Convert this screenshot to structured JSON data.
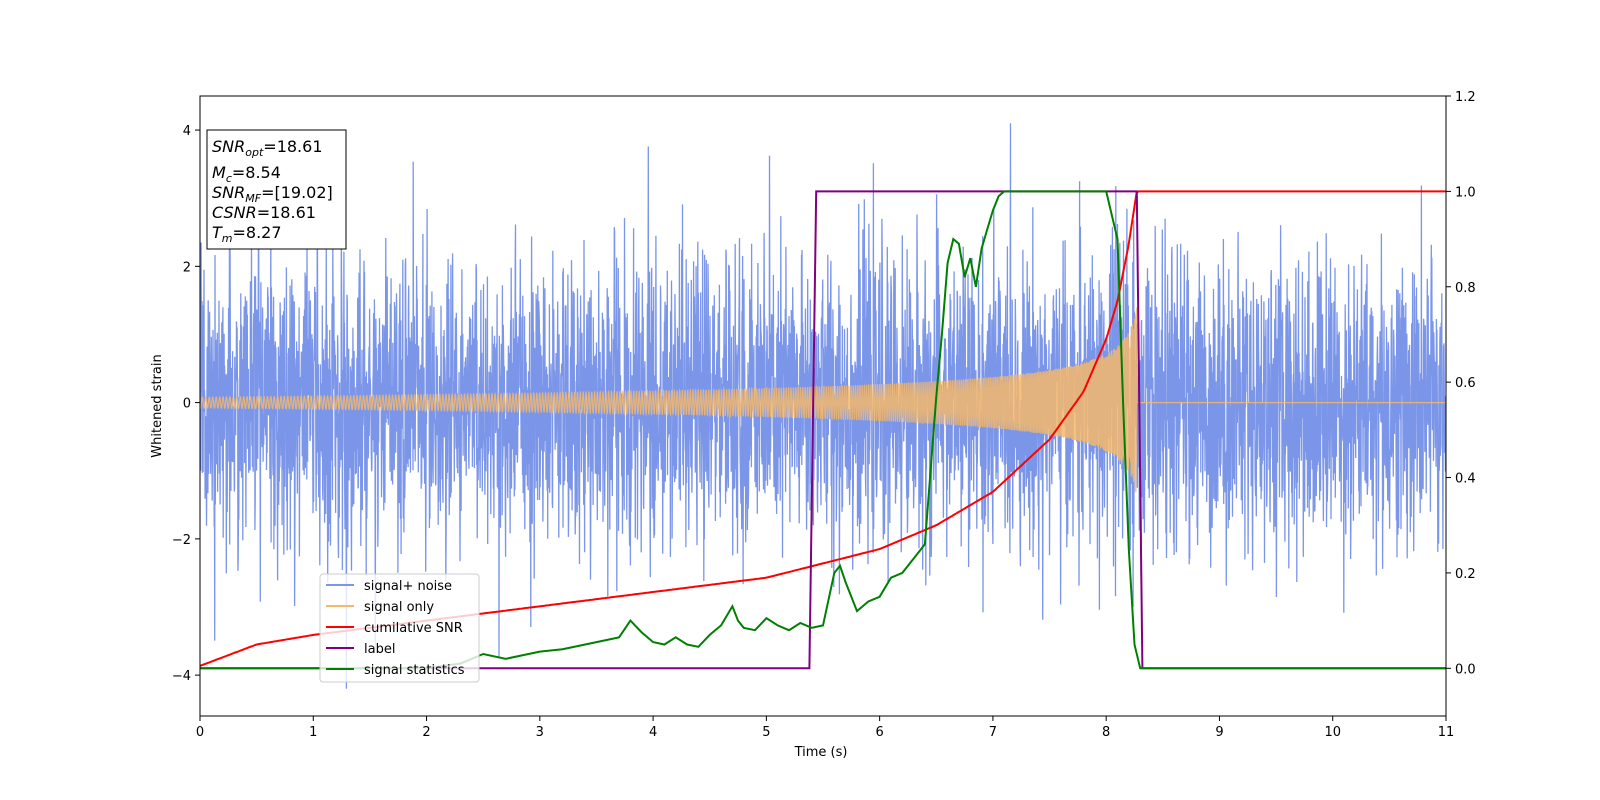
{
  "chart_data": {
    "type": "line",
    "xlabel": "Time (s)",
    "ylabel": "Whitened strain",
    "xlim": [
      0,
      11
    ],
    "ylim": [
      -4.6,
      4.5
    ],
    "y2lim": [
      -0.1,
      1.2
    ],
    "x_ticks": [
      "0",
      "1",
      "2",
      "3",
      "4",
      "5",
      "6",
      "7",
      "8",
      "9",
      "10",
      "11"
    ],
    "y_ticks": [
      "−4",
      "−2",
      "0",
      "2",
      "4"
    ],
    "y2_ticks": [
      "0.0",
      "0.2",
      "0.4",
      "0.6",
      "0.8",
      "1.0",
      "1.2"
    ],
    "grid": false,
    "legend_position": "lower-left",
    "colors": {
      "noise": "#7b96e8",
      "signal": "#f5b86b",
      "cumulative_snr": "#ff0000",
      "label": "#800080",
      "statistics": "#008000"
    },
    "info_box": {
      "snr_opt": "=18.61",
      "mc": "=8.54",
      "snr_mf": "=[19.02]",
      "csnr": "=18.61",
      "tm": "=8.27"
    },
    "series": [
      {
        "name": "signal+ noise",
        "axis": "left",
        "description": "whitened noise plus signal, approx. Gaussian with peaks up to about ±4"
      },
      {
        "name": "signal only",
        "axis": "left",
        "chirp_start": 0,
        "chirp_end": 8.27,
        "amplitude_start": 0.08,
        "amplitude_end": 1.4
      },
      {
        "name": "cumilative SNR",
        "axis": "right",
        "x": [
          0,
          0.5,
          1,
          2,
          3,
          4,
          5,
          5.5,
          6,
          6.5,
          7,
          7.5,
          7.8,
          8.0,
          8.1,
          8.2,
          8.27,
          11
        ],
        "y": [
          0.005,
          0.05,
          0.07,
          0.1,
          0.13,
          0.16,
          0.19,
          0.22,
          0.25,
          0.3,
          0.37,
          0.48,
          0.58,
          0.69,
          0.77,
          0.89,
          1.0,
          1.0
        ]
      },
      {
        "name": "label",
        "axis": "right",
        "x": [
          0,
          5.38,
          5.44,
          8.27,
          8.27,
          8.32,
          11
        ],
        "y": [
          0,
          0,
          1,
          1,
          1,
          0,
          0
        ]
      },
      {
        "name": "signal statistics",
        "axis": "right",
        "x": [
          0,
          0.5,
          1,
          1.5,
          2,
          2.3,
          2.5,
          2.7,
          3.0,
          3.2,
          3.5,
          3.7,
          3.8,
          3.9,
          4.0,
          4.1,
          4.2,
          4.3,
          4.4,
          4.5,
          4.6,
          4.7,
          4.75,
          4.8,
          4.9,
          5.0,
          5.1,
          5.2,
          5.3,
          5.4,
          5.5,
          5.6,
          5.65,
          5.7,
          5.8,
          5.9,
          6.0,
          6.1,
          6.2,
          6.3,
          6.4,
          6.5,
          6.55,
          6.6,
          6.65,
          6.7,
          6.75,
          6.8,
          6.85,
          6.9,
          6.95,
          7.0,
          7.05,
          7.1,
          7.2,
          7.3,
          7.4,
          7.6,
          7.8,
          8.0,
          8.1,
          8.15,
          8.2,
          8.25,
          8.3,
          9.0,
          11
        ],
        "y": [
          0.0,
          0.0,
          0.0,
          0.0,
          0.0,
          0.01,
          0.03,
          0.02,
          0.035,
          0.04,
          0.055,
          0.065,
          0.1,
          0.075,
          0.055,
          0.05,
          0.065,
          0.05,
          0.045,
          0.07,
          0.09,
          0.13,
          0.1,
          0.085,
          0.08,
          0.105,
          0.09,
          0.08,
          0.095,
          0.085,
          0.09,
          0.2,
          0.215,
          0.18,
          0.12,
          0.14,
          0.15,
          0.19,
          0.2,
          0.23,
          0.26,
          0.57,
          0.7,
          0.85,
          0.9,
          0.89,
          0.82,
          0.86,
          0.8,
          0.88,
          0.92,
          0.96,
          0.99,
          1.0,
          1.0,
          1.0,
          1.0,
          1.0,
          1.0,
          1.0,
          0.9,
          0.55,
          0.25,
          0.05,
          0.0,
          0.0,
          0.0
        ]
      }
    ]
  }
}
